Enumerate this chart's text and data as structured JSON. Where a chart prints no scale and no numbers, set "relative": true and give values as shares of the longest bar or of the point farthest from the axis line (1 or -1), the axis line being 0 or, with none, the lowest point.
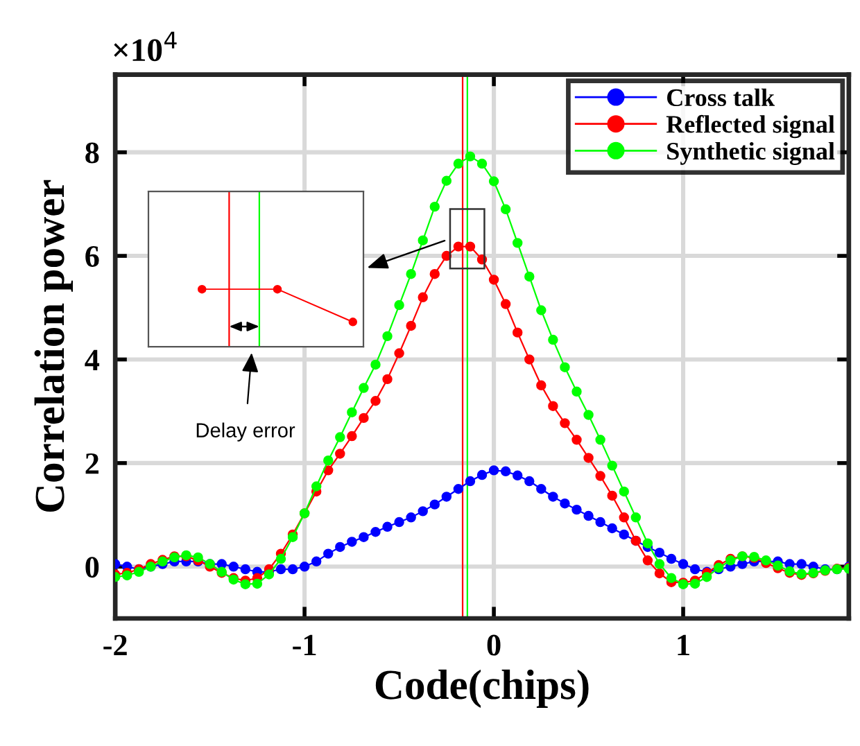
{
  "chart_data": [
    {
      "type": "line",
      "xlabel": "Code(chips)",
      "ylabel": "Correlation power",
      "annotations": [
        "×10$^{4}$"
      ],
      "x": [
        -2,
        -1.9375,
        -1.875,
        -1.8125,
        -1.75,
        -1.6875,
        -1.625,
        -1.5625,
        -1.5,
        -1.4375,
        -1.375,
        -1.3125,
        -1.25,
        -1.1875,
        -1.125,
        -1.0625,
        -1,
        -0.9375,
        -0.875,
        -0.8125,
        -0.75,
        -0.6875,
        -0.625,
        -0.5625,
        -0.5,
        -0.4375,
        -0.375,
        -0.3125,
        -0.25,
        -0.1875,
        -0.125,
        -0.0625,
        0,
        0.0625,
        0.125,
        0.1875,
        0.25,
        0.3125,
        0.375,
        0.4375,
        0.5,
        0.5625,
        0.625,
        0.6875,
        0.75,
        0.8125,
        0.875,
        0.9375,
        1,
        1.0625,
        1.125,
        1.1875,
        1.25,
        1.3125,
        1.375,
        1.4375,
        1.5,
        1.5625,
        1.625,
        1.6875,
        1.75,
        1.8125,
        1.875
      ],
      "series": [
        {
          "name": "Cross talk",
          "color": "#0000ff",
          "values": [
            0.05,
            0,
            -0.05,
            0,
            0.05,
            0.1,
            0.1,
            0.1,
            0.05,
            0.05,
            0,
            -0.05,
            -0.1,
            -0.1,
            -0.05,
            -0.05,
            0,
            0.1,
            0.25,
            0.38,
            0.48,
            0.57,
            0.67,
            0.77,
            0.86,
            0.95,
            1.07,
            1.2,
            1.35,
            1.5,
            1.65,
            1.77,
            1.86,
            1.84,
            1.76,
            1.65,
            1.5,
            1.35,
            1.22,
            1.1,
            0.98,
            0.86,
            0.74,
            0.62,
            0.5,
            0.38,
            0.27,
            0.15,
            0.05,
            -0.05,
            -0.1,
            -0.05,
            0,
            0.05,
            0.1,
            0.1,
            0.1,
            0.05,
            0.05,
            0,
            -0.05,
            -0.05,
            0
          ]
        },
        {
          "name": "Reflected signal",
          "color": "#ff0000",
          "values": [
            -0.15,
            -0.12,
            -0.05,
            0.05,
            0.13,
            0.2,
            0.2,
            0.12,
            0,
            -0.12,
            -0.22,
            -0.27,
            -0.22,
            -0.05,
            0.25,
            0.62,
            1.03,
            1.45,
            1.86,
            2.18,
            2.52,
            2.87,
            3.2,
            3.62,
            4.12,
            4.65,
            5.2,
            5.65,
            6.0,
            6.18,
            6.18,
            5.93,
            5.54,
            5.07,
            4.52,
            4.0,
            3.5,
            3.1,
            2.77,
            2.45,
            2.1,
            1.75,
            1.37,
            0.95,
            0.5,
            0.12,
            -0.13,
            -0.3,
            -0.31,
            -0.27,
            -0.12,
            0.03,
            0.15,
            0.2,
            0.17,
            0.07,
            -0.03,
            -0.12,
            -0.16,
            -0.13,
            -0.08,
            -0.04,
            -0.02
          ]
        },
        {
          "name": "Synthetic signal",
          "color": "#00ff00",
          "values": [
            -0.2,
            -0.17,
            -0.1,
            0,
            0.1,
            0.18,
            0.22,
            0.18,
            0.05,
            -0.1,
            -0.25,
            -0.34,
            -0.33,
            -0.15,
            0.15,
            0.57,
            1.03,
            1.55,
            2.05,
            2.5,
            2.98,
            3.45,
            3.9,
            4.45,
            5.05,
            5.65,
            6.3,
            6.95,
            7.45,
            7.78,
            7.92,
            7.78,
            7.44,
            6.9,
            6.25,
            5.6,
            4.95,
            4.38,
            3.85,
            3.38,
            2.93,
            2.45,
            1.95,
            1.45,
            0.95,
            0.45,
            0.05,
            -0.22,
            -0.34,
            -0.33,
            -0.2,
            -0.02,
            0.12,
            0.2,
            0.19,
            0.12,
            0.02,
            -0.09,
            -0.14,
            -0.12,
            -0.07,
            -0.05,
            -0.04
          ]
        }
      ],
      "ref_lines": [
        {
          "axis": "x",
          "value": -0.165,
          "color": "#ff0000"
        },
        {
          "axis": "x",
          "value": -0.14,
          "color": "#00ff00"
        }
      ],
      "xlim": [
        -2,
        1.875
      ],
      "xticks": [
        -2,
        -1,
        0,
        1
      ],
      "ylim": [
        -1,
        9.5
      ],
      "yticks": [
        0,
        2,
        4,
        6,
        8
      ],
      "grid": true,
      "legend": "top right",
      "marker": "circle",
      "line_style": "solid"
    },
    {
      "type": "line",
      "relative": true,
      "annotations": [
        "Delay error"
      ],
      "categories": [
        null,
        null,
        null
      ],
      "series": [
        {
          "color": "#ff0000",
          "values": [
            1,
            1,
            0.43
          ]
        }
      ],
      "tick_labels": false,
      "marker": "circle",
      "line_style": "solid"
    }
  ]
}
